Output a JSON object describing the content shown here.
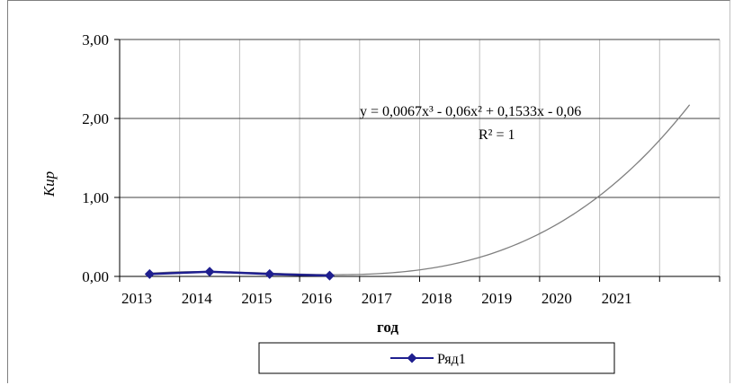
{
  "chart_data": {
    "type": "line",
    "title": "",
    "xlabel": "год",
    "ylabel": "Кир",
    "x_categories": [
      "2013",
      "2014",
      "2015",
      "2016",
      "2017",
      "2018",
      "2019",
      "2020",
      "2021"
    ],
    "y_tick_labels": [
      "0,00",
      "1,00",
      "2,00",
      "3,00"
    ],
    "ylim": [
      0,
      3
    ],
    "series": [
      {
        "name": "Ряд1",
        "color": "#1f1f8f",
        "marker": "diamond",
        "x": [
          "2013",
          "2014",
          "2015",
          "2016"
        ],
        "values": [
          0.03,
          0.06,
          0.03,
          0.01
        ]
      }
    ],
    "trendline": {
      "type": "polynomial",
      "order": 3,
      "color": "#7f7f7f",
      "equation_text": "y = 0,0067x³ - 0,06x² + 0,1533x - 0,06",
      "r2_text": "R² = 1",
      "coefficients": [
        0.0067,
        -0.06,
        0.1533,
        -0.06
      ],
      "forecast_until_index": 10
    },
    "legend": {
      "position": "bottom",
      "entries": [
        "Ряд1"
      ]
    },
    "grid": {
      "horizontal": true,
      "vertical": true
    }
  }
}
